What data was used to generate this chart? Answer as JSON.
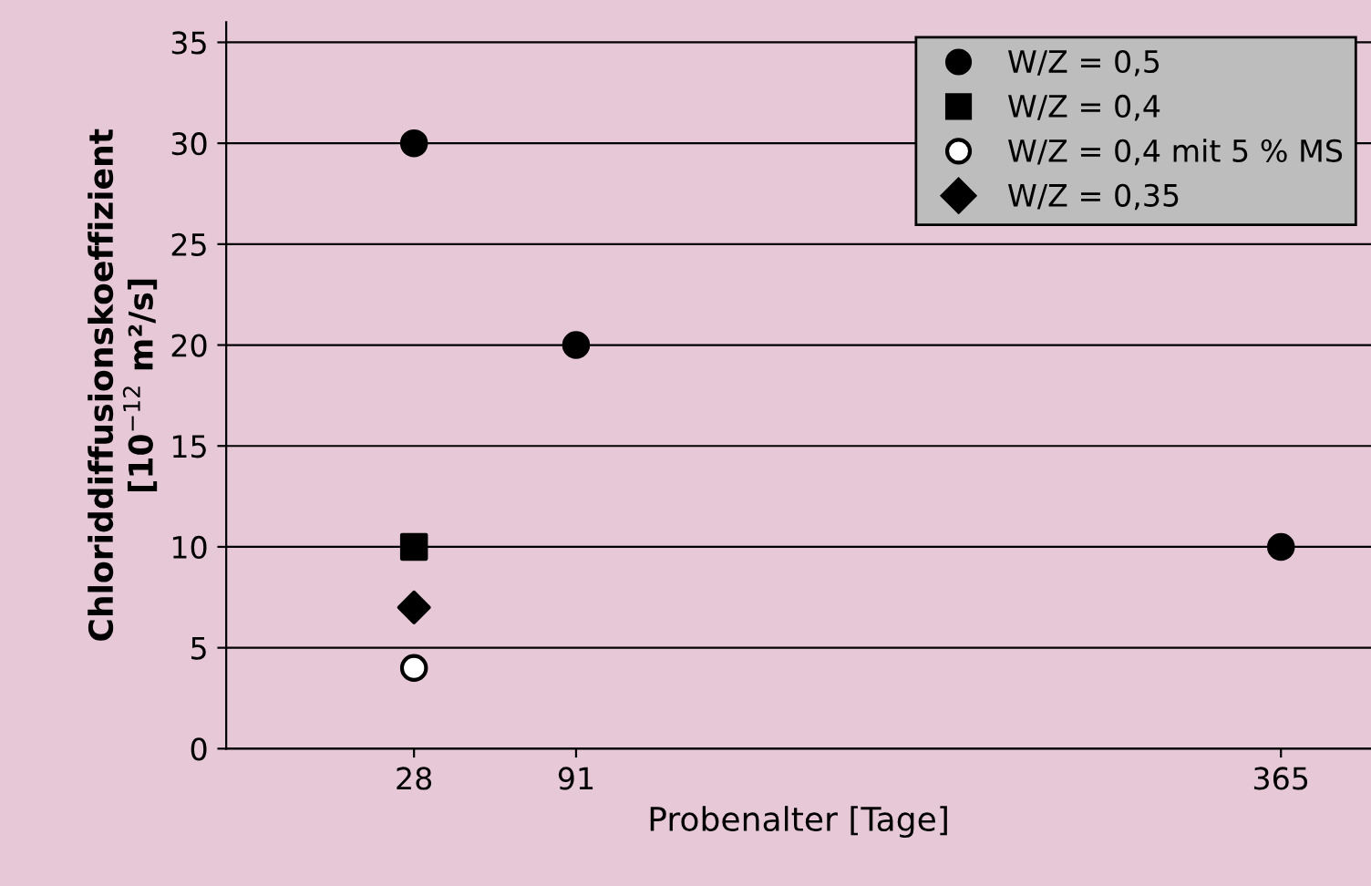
{
  "chart_data": {
    "type": "scatter",
    "xlabel": "Probenalter [Tage]",
    "ylabel": "Chloriddiffusionskoeffizient\n[10$^{−12}$ m²/s]",
    "xlim": [
      -45,
      400
    ],
    "xticks": [
      28,
      91,
      365
    ],
    "ylim": [
      0,
      36
    ],
    "yticks": [
      0,
      5,
      10,
      15,
      20,
      25,
      30,
      35
    ],
    "grid": "y",
    "legend": "top right",
    "series": [
      {
        "name": "W/Z = 0,5",
        "marker": "circle",
        "color": "#000000",
        "x": [
          28,
          91,
          365
        ],
        "values": [
          30,
          20,
          10
        ]
      },
      {
        "name": "W/Z = 0,4",
        "marker": "square",
        "color": "#000000",
        "x": [
          28
        ],
        "values": [
          10
        ]
      },
      {
        "name": "W/Z = 0,4 mit 5 % MS",
        "marker": "circle",
        "color": "#ffffff",
        "x": [
          28
        ],
        "values": [
          4
        ]
      },
      {
        "name": "W/Z = 0,35",
        "marker": "diamond",
        "color": "#000000",
        "x": [
          28
        ],
        "values": [
          7
        ]
      }
    ]
  }
}
